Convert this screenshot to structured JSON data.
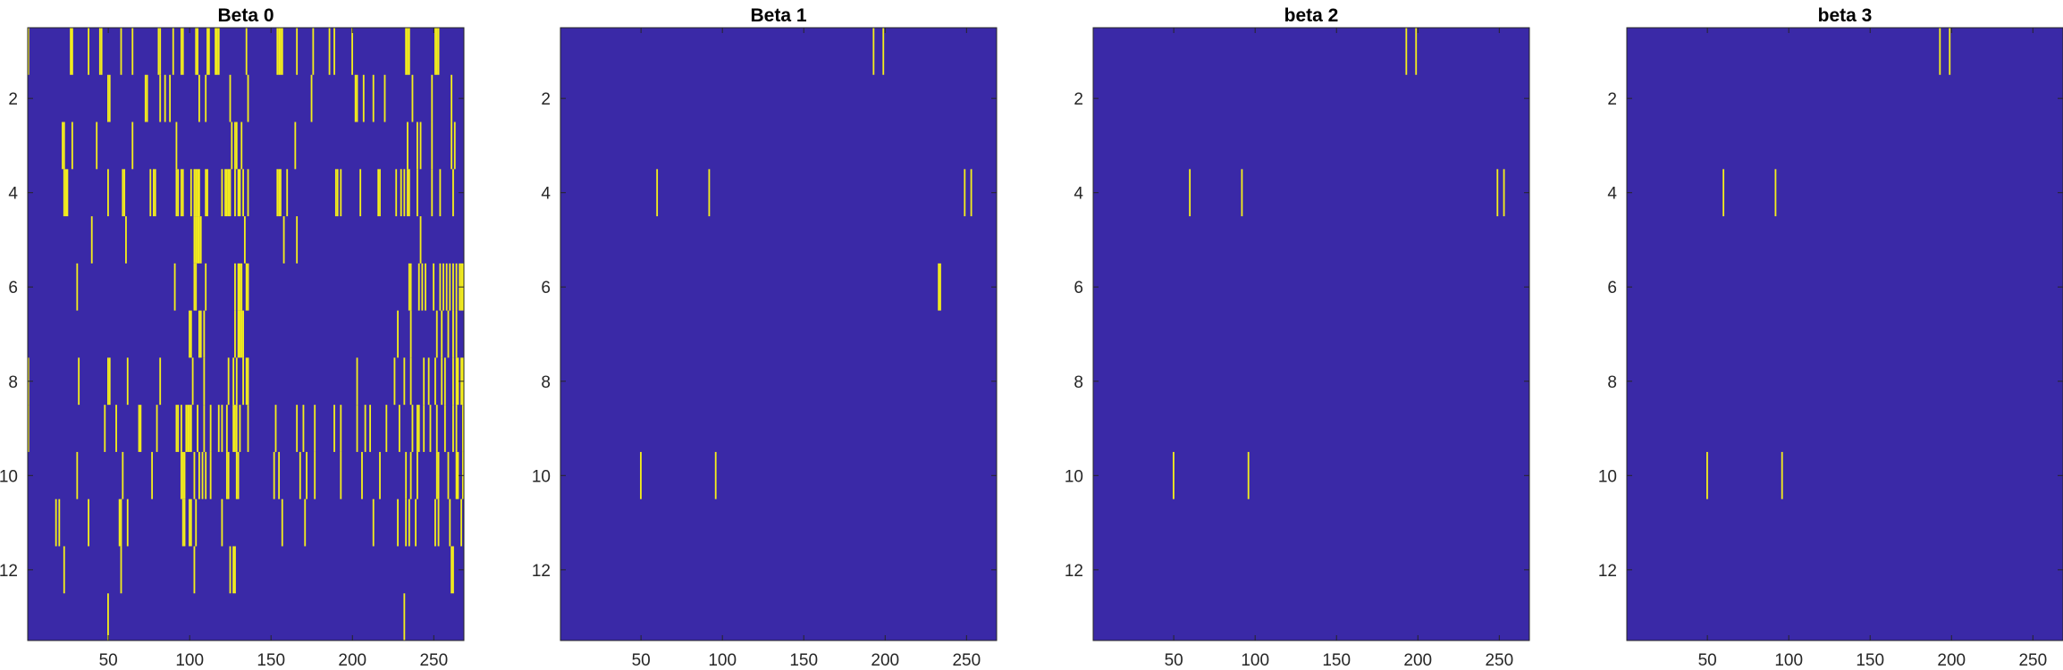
{
  "colors": {
    "background": "#3a29a7",
    "mark": "#f4ee1c",
    "axis": "#262626"
  },
  "chart_data": [
    {
      "type": "heatmap",
      "title": "Beta 0",
      "xlabel": "",
      "ylabel": "",
      "xlim": [
        0.5,
        268.5
      ],
      "ylim": [
        0.5,
        13.5
      ],
      "y_reversed": true,
      "xticks": [
        50,
        100,
        150,
        200,
        250
      ],
      "yticks": [
        2,
        4,
        6,
        8,
        10,
        12
      ],
      "colormap": "parula",
      "value_range": [
        0,
        1
      ],
      "grid": false,
      "rows": [
        {
          "row": 1,
          "cols": [
            1,
            27,
            28,
            38,
            45,
            46,
            58,
            65,
            81,
            82,
            90,
            95,
            96,
            104,
            105,
            111,
            112,
            116,
            117,
            118,
            135,
            154,
            155,
            156,
            157,
            166,
            176,
            186,
            189,
            200,
            233,
            234,
            235,
            251,
            252,
            253
          ]
        },
        {
          "row": 2,
          "cols": [
            50,
            51,
            73,
            74,
            82,
            85,
            88,
            106,
            110,
            125,
            136,
            175,
            202,
            203,
            207,
            213,
            220,
            237,
            249,
            261
          ]
        },
        {
          "row": 3,
          "cols": [
            22,
            23,
            28,
            43,
            65,
            92,
            126,
            128,
            129,
            132,
            165,
            234,
            240,
            242,
            249,
            261,
            263
          ]
        },
        {
          "row": 4,
          "cols": [
            23,
            24,
            25,
            50,
            59,
            60,
            76,
            78,
            79,
            92,
            93,
            95,
            96,
            101,
            103,
            104,
            105,
            106,
            110,
            111,
            120,
            122,
            123,
            124,
            125,
            128,
            130,
            131,
            133,
            136,
            154,
            155,
            156,
            160,
            190,
            191,
            193,
            205,
            216,
            217,
            227,
            230,
            232,
            234,
            235,
            240,
            249,
            254,
            262
          ]
        },
        {
          "row": 5,
          "cols": [
            40,
            61,
            103,
            104,
            105,
            106,
            107,
            134,
            158,
            166,
            242
          ]
        },
        {
          "row": 6,
          "cols": [
            31,
            91,
            103,
            104,
            110,
            128,
            130,
            131,
            132,
            135,
            136,
            235,
            236,
            241,
            243,
            245,
            250,
            254,
            256,
            258,
            260,
            262,
            264,
            266,
            267,
            268
          ]
        },
        {
          "row": 7,
          "cols": [
            100,
            101,
            106,
            107,
            109,
            128,
            130,
            131,
            132,
            133,
            228,
            236,
            252,
            255,
            259,
            262,
            264
          ]
        },
        {
          "row": 8,
          "cols": [
            1,
            32,
            50,
            51,
            62,
            82,
            102,
            109,
            124,
            127,
            129,
            133,
            135,
            136,
            203,
            226,
            232,
            236,
            244,
            247,
            251,
            255,
            257,
            262,
            264,
            265,
            267,
            268
          ]
        },
        {
          "row": 9,
          "cols": [
            1,
            48,
            55,
            69,
            70,
            80,
            92,
            93,
            95,
            98,
            99,
            100,
            101,
            105,
            109,
            113,
            118,
            120,
            123,
            127,
            128,
            129,
            131,
            136,
            153,
            166,
            170,
            177,
            189,
            193,
            203,
            208,
            211,
            221,
            229,
            237,
            240,
            241,
            244,
            248,
            252,
            257,
            262,
            264,
            268
          ]
        },
        {
          "row": 10,
          "cols": [
            31,
            59,
            77,
            95,
            96,
            97,
            103,
            106,
            108,
            110,
            113,
            123,
            124,
            129,
            130,
            152,
            155,
            168,
            172,
            177,
            193,
            206,
            217,
            233,
            236,
            240,
            252,
            253,
            259,
            264,
            265,
            268
          ]
        },
        {
          "row": 11,
          "cols": [
            18,
            20,
            38,
            57,
            58,
            62,
            96,
            97,
            100,
            101,
            104,
            120,
            157,
            171,
            213,
            228,
            233,
            235,
            239,
            251,
            253,
            260,
            267
          ]
        },
        {
          "row": 12,
          "cols": [
            23,
            58,
            103,
            125,
            127,
            128,
            261,
            262
          ]
        },
        {
          "row": 13,
          "cols": [
            50,
            232
          ]
        }
      ]
    },
    {
      "type": "heatmap",
      "title": "Beta 1",
      "xlabel": "",
      "ylabel": "",
      "xlim": [
        0.5,
        268.5
      ],
      "ylim": [
        0.5,
        13.5
      ],
      "y_reversed": true,
      "xticks": [
        50,
        100,
        150,
        200,
        250
      ],
      "yticks": [
        2,
        4,
        6,
        8,
        10,
        12
      ],
      "colormap": "parula",
      "value_range": [
        0,
        1
      ],
      "grid": false,
      "rows": [
        {
          "row": 1,
          "cols": [
            193,
            199
          ]
        },
        {
          "row": 4,
          "cols": [
            60,
            92,
            249,
            253
          ]
        },
        {
          "row": 6,
          "cols": [
            233,
            234
          ]
        },
        {
          "row": 10,
          "cols": [
            50,
            96
          ]
        }
      ]
    },
    {
      "type": "heatmap",
      "title": "beta 2",
      "xlabel": "",
      "ylabel": "",
      "xlim": [
        0.5,
        268.5
      ],
      "ylim": [
        0.5,
        13.5
      ],
      "y_reversed": true,
      "xticks": [
        50,
        100,
        150,
        200,
        250
      ],
      "yticks": [
        2,
        4,
        6,
        8,
        10,
        12
      ],
      "colormap": "parula",
      "value_range": [
        0,
        1
      ],
      "grid": false,
      "rows": [
        {
          "row": 1,
          "cols": [
            193,
            199
          ]
        },
        {
          "row": 4,
          "cols": [
            60,
            92,
            249,
            253
          ]
        },
        {
          "row": 10,
          "cols": [
            50,
            96
          ]
        }
      ]
    },
    {
      "type": "heatmap",
      "title": "beta 3",
      "xlabel": "",
      "ylabel": "",
      "xlim": [
        0.5,
        268.5
      ],
      "ylim": [
        0.5,
        13.5
      ],
      "y_reversed": true,
      "xticks": [
        50,
        100,
        150,
        200,
        250
      ],
      "yticks": [
        2,
        4,
        6,
        8,
        10,
        12
      ],
      "colormap": "parula",
      "value_range": [
        0,
        1
      ],
      "grid": false,
      "rows": [
        {
          "row": 1,
          "cols": [
            193,
            199
          ]
        },
        {
          "row": 4,
          "cols": [
            60,
            92
          ]
        },
        {
          "row": 10,
          "cols": [
            50,
            96
          ]
        }
      ]
    }
  ]
}
